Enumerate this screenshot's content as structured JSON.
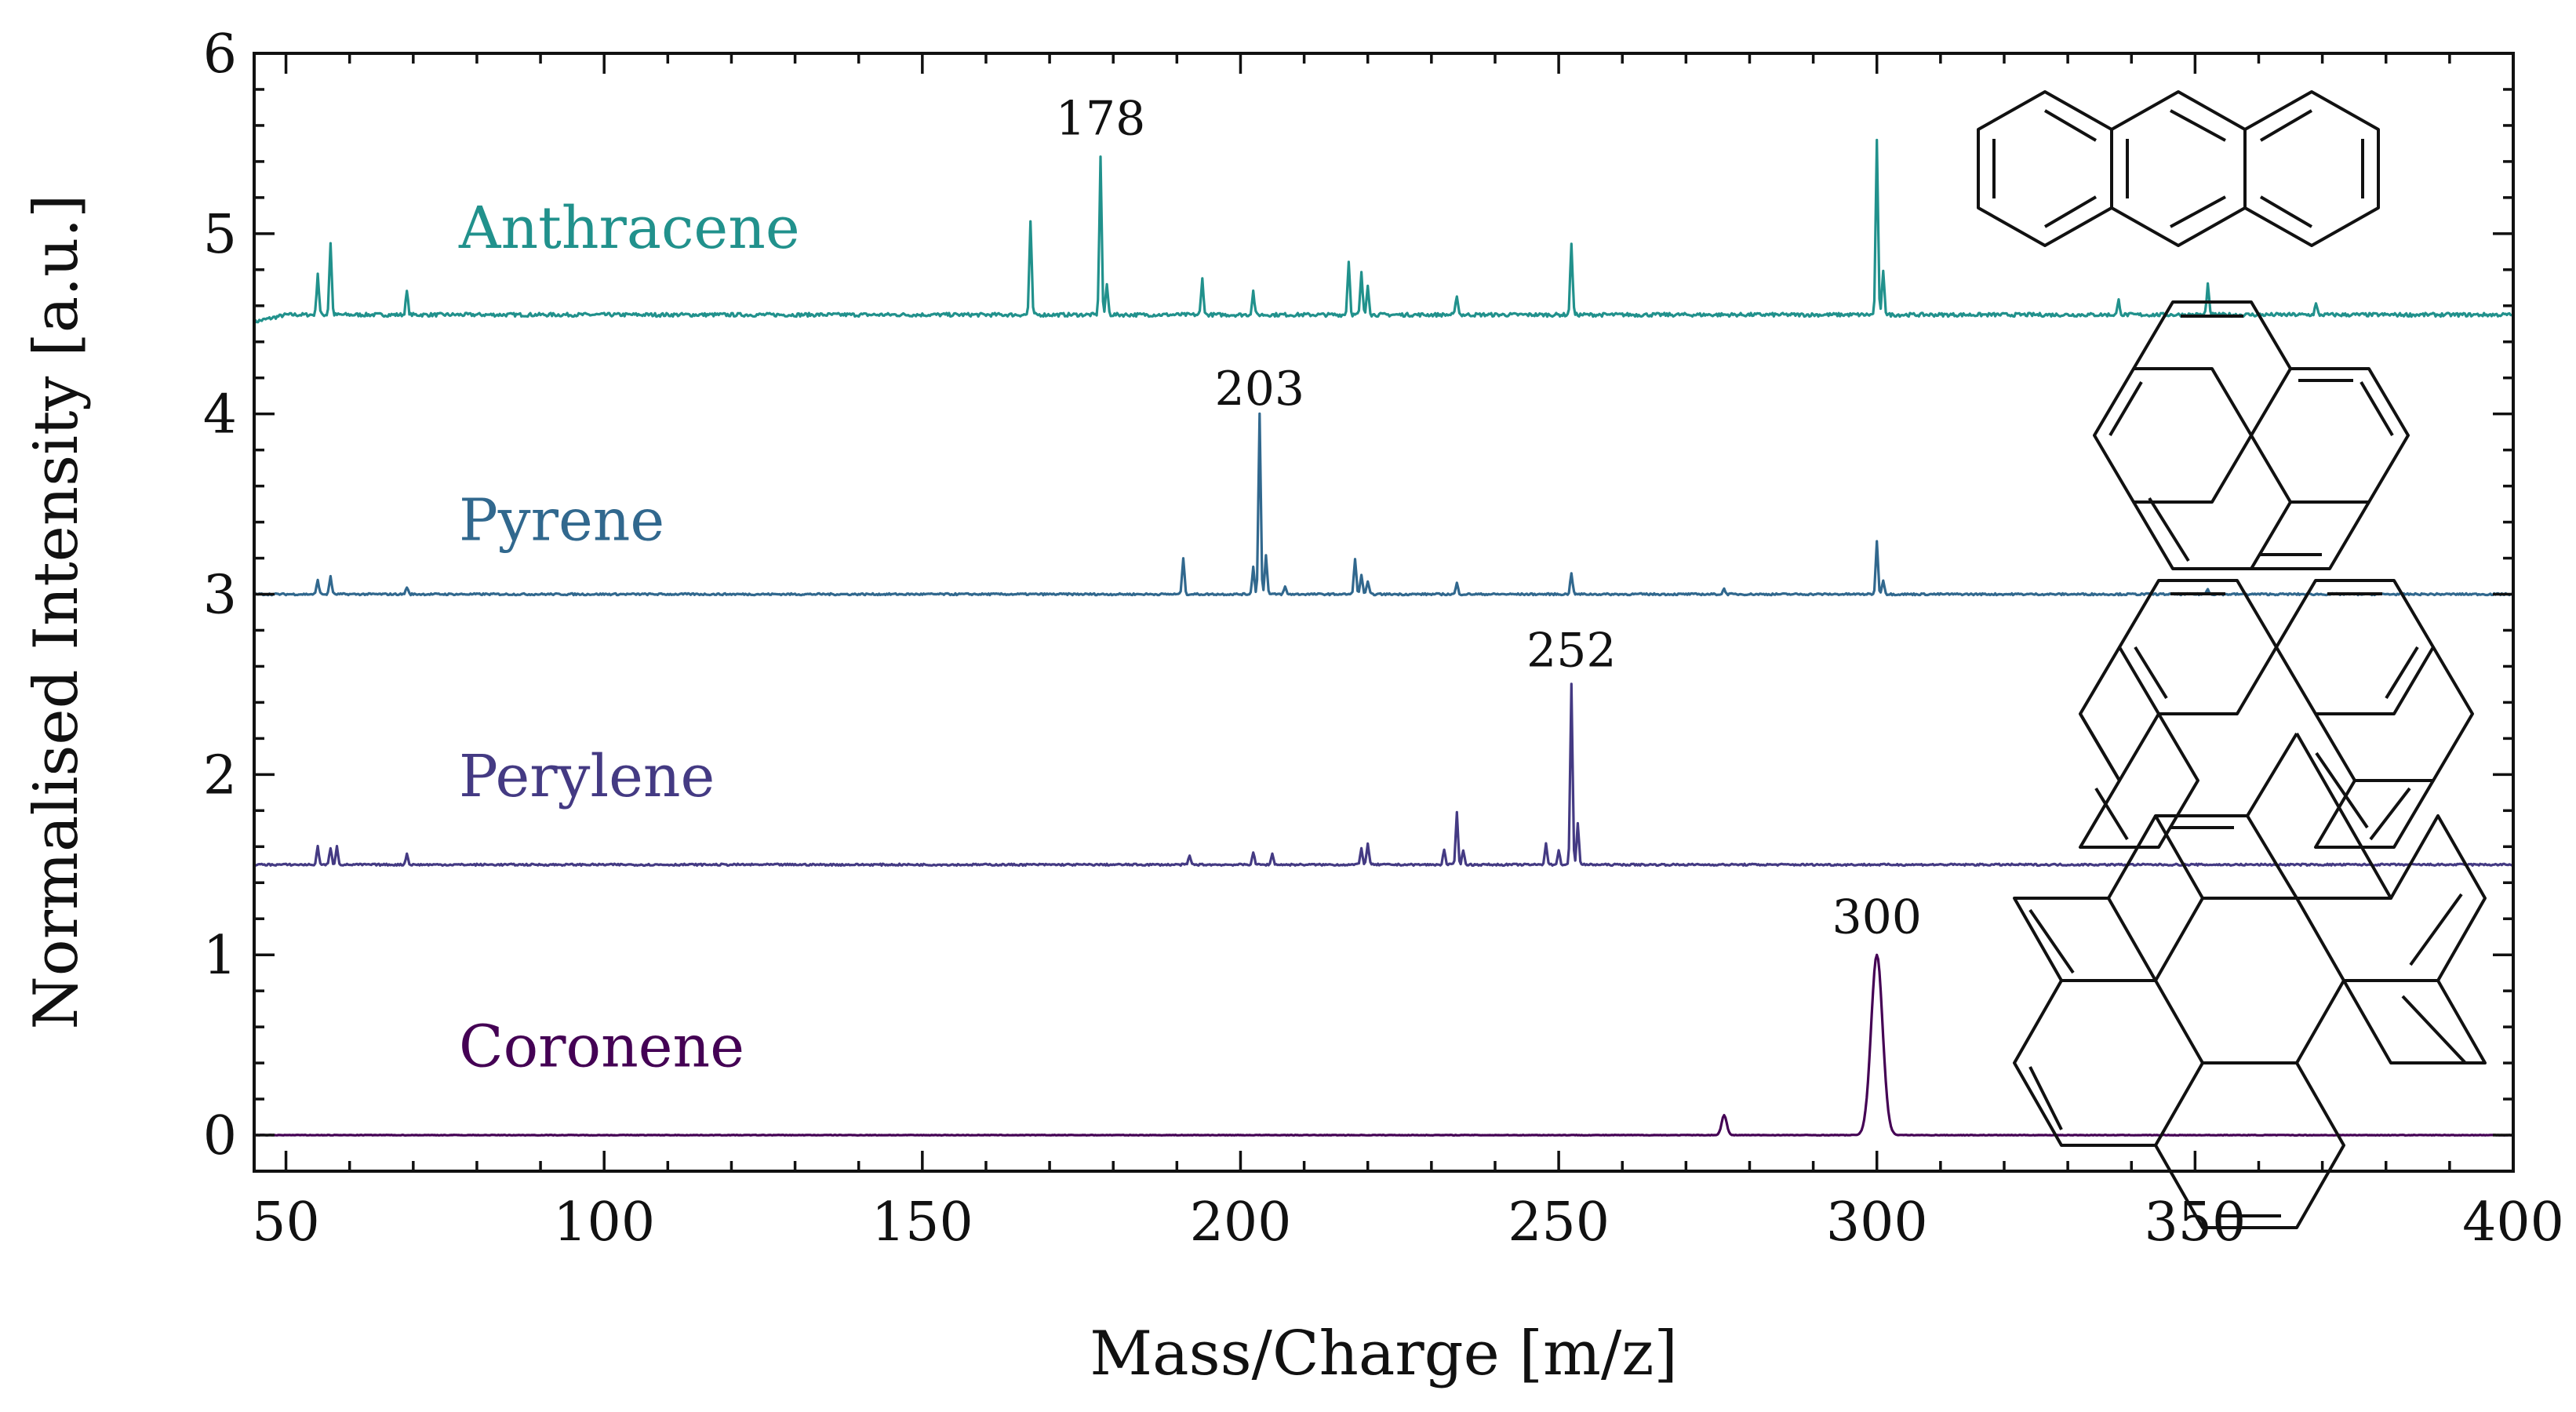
{
  "chart_data": {
    "type": "line",
    "title": "",
    "xlabel": "Mass/Charge [m/z]",
    "ylabel": "Normalised Intensity [a.u.]",
    "xlim": [
      45,
      400
    ],
    "ylim": [
      -0.2,
      6
    ],
    "xticks": [
      50,
      100,
      150,
      200,
      250,
      300,
      350,
      400
    ],
    "yticks": [
      0,
      1,
      2,
      3,
      4,
      5,
      6
    ],
    "xtick_labels": [
      "50",
      "100",
      "150",
      "200",
      "250",
      "300",
      "350",
      "400"
    ],
    "ytick_labels": [
      "0",
      "1",
      "2",
      "3",
      "4",
      "5",
      "6"
    ],
    "series": [
      {
        "name": "Anthracene",
        "color": "#21918c",
        "baseline": 4.55,
        "label_y": 4.92,
        "peak_label": "178",
        "peak_label_x": 178,
        "peak_label_y": 5.55,
        "peaks": [
          {
            "x": 55,
            "y": 4.78
          },
          {
            "x": 57,
            "y": 4.95
          },
          {
            "x": 69,
            "y": 4.68
          },
          {
            "x": 167,
            "y": 5.06
          },
          {
            "x": 178,
            "y": 5.43
          },
          {
            "x": 179,
            "y": 4.72
          },
          {
            "x": 194,
            "y": 4.75
          },
          {
            "x": 202,
            "y": 4.68
          },
          {
            "x": 217,
            "y": 4.85
          },
          {
            "x": 219,
            "y": 4.78
          },
          {
            "x": 220,
            "y": 4.72
          },
          {
            "x": 234,
            "y": 4.66
          },
          {
            "x": 252,
            "y": 4.95
          },
          {
            "x": 300,
            "y": 5.51
          },
          {
            "x": 301,
            "y": 4.8
          },
          {
            "x": 338,
            "y": 4.63
          },
          {
            "x": 352,
            "y": 4.72
          },
          {
            "x": 369,
            "y": 4.61
          }
        ]
      },
      {
        "name": "Pyrene",
        "color": "#31688e",
        "baseline": 3.0,
        "label_y": 3.3,
        "peak_label": "203",
        "peak_label_x": 203,
        "peak_label_y": 4.05,
        "peaks": [
          {
            "x": 55,
            "y": 3.08
          },
          {
            "x": 57,
            "y": 3.1
          },
          {
            "x": 69,
            "y": 3.04
          },
          {
            "x": 191,
            "y": 3.2
          },
          {
            "x": 202,
            "y": 3.15
          },
          {
            "x": 203,
            "y": 4.0
          },
          {
            "x": 204,
            "y": 3.22
          },
          {
            "x": 207,
            "y": 3.04
          },
          {
            "x": 218,
            "y": 3.2
          },
          {
            "x": 219,
            "y": 3.11
          },
          {
            "x": 220,
            "y": 3.07
          },
          {
            "x": 234,
            "y": 3.06
          },
          {
            "x": 252,
            "y": 3.12
          },
          {
            "x": 276,
            "y": 3.03
          },
          {
            "x": 300,
            "y": 3.29
          },
          {
            "x": 301,
            "y": 3.08
          },
          {
            "x": 352,
            "y": 3.03
          }
        ]
      },
      {
        "name": "Perylene",
        "color": "#443a83",
        "baseline": 1.5,
        "label_y": 1.88,
        "peak_label": "252",
        "peak_label_x": 252,
        "peak_label_y": 2.6,
        "peaks": [
          {
            "x": 55,
            "y": 1.6
          },
          {
            "x": 57,
            "y": 1.59
          },
          {
            "x": 58,
            "y": 1.6
          },
          {
            "x": 69,
            "y": 1.56
          },
          {
            "x": 192,
            "y": 1.55
          },
          {
            "x": 202,
            "y": 1.57
          },
          {
            "x": 205,
            "y": 1.56
          },
          {
            "x": 219,
            "y": 1.59
          },
          {
            "x": 220,
            "y": 1.62
          },
          {
            "x": 232,
            "y": 1.58
          },
          {
            "x": 234,
            "y": 1.79
          },
          {
            "x": 235,
            "y": 1.58
          },
          {
            "x": 248,
            "y": 1.62
          },
          {
            "x": 250,
            "y": 1.58
          },
          {
            "x": 252,
            "y": 2.5
          },
          {
            "x": 253,
            "y": 1.73
          }
        ]
      },
      {
        "name": "Coronene",
        "color": "#440154",
        "baseline": 0.0,
        "label_y": 0.38,
        "peak_label": "300",
        "peak_label_x": 300,
        "peak_label_y": 1.12,
        "peaks": [
          {
            "x": 276,
            "y": 0.11
          },
          {
            "x": 300,
            "y": 1.0
          }
        ]
      }
    ]
  }
}
